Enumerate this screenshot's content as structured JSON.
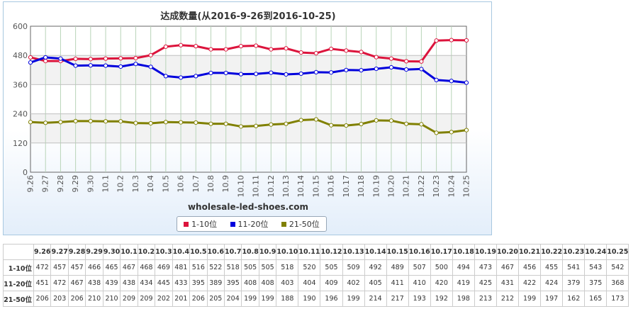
{
  "chart_data": {
    "type": "line",
    "title": "达成数量(从2016-9-26到2016-10-25)",
    "categories": [
      "9.26",
      "9.27",
      "9.28",
      "9.29",
      "9.30",
      "10.1",
      "10.2",
      "10.3",
      "10.4",
      "10.5",
      "10.6",
      "10.7",
      "10.8",
      "10.9",
      "10.10",
      "10.11",
      "10.12",
      "10.13",
      "10.14",
      "10.15",
      "10.16",
      "10.17",
      "10.18",
      "10.19",
      "10.20",
      "10.21",
      "10.22",
      "10.23",
      "10.24",
      "10.25"
    ],
    "series": [
      {
        "name": "1-10位",
        "color": "#dc143c",
        "values": [
          472,
          457,
          457,
          466,
          465,
          467,
          468,
          469,
          481,
          516,
          522,
          518,
          505,
          505,
          518,
          520,
          505,
          509,
          492,
          489,
          507,
          500,
          494,
          473,
          467,
          456,
          455,
          541,
          543,
          542
        ]
      },
      {
        "name": "11-20位",
        "color": "#0000dd",
        "values": [
          451,
          472,
          467,
          438,
          439,
          438,
          434,
          445,
          433,
          395,
          389,
          395,
          408,
          408,
          403,
          404,
          409,
          402,
          405,
          411,
          410,
          420,
          419,
          425,
          431,
          422,
          424,
          379,
          375,
          368
        ]
      },
      {
        "name": "21-50位",
        "color": "#808000",
        "values": [
          206,
          203,
          206,
          210,
          210,
          209,
          209,
          202,
          201,
          206,
          205,
          204,
          199,
          199,
          188,
          190,
          196,
          199,
          214,
          217,
          193,
          192,
          198,
          213,
          212,
          199,
          197,
          162,
          165,
          173
        ]
      }
    ],
    "ylim": [
      0,
      600
    ],
    "yticks": [
      0,
      120,
      240,
      360,
      480,
      600
    ],
    "grid": true,
    "legend_placement": "bottom-center"
  },
  "watermark": "wholesale-led-shoes.com",
  "table": {
    "columns": [
      "9.26",
      "9.27",
      "9.28",
      "9.29",
      "9.30",
      "10.1",
      "10.2",
      "10.3",
      "10.4",
      "10.5",
      "10.6",
      "10.7",
      "10.8",
      "10.9",
      "10.10",
      "10.11",
      "10.12",
      "10.13",
      "10.14",
      "10.15",
      "10.16",
      "10.17",
      "10.18",
      "10.19",
      "10.20",
      "10.21",
      "10.22",
      "10.23",
      "10.24",
      "10.25"
    ],
    "rows": [
      {
        "label": "1-10位",
        "values": [
          472,
          457,
          457,
          466,
          465,
          467,
          468,
          469,
          481,
          516,
          522,
          518,
          505,
          505,
          518,
          520,
          505,
          509,
          492,
          489,
          507,
          500,
          494,
          473,
          467,
          456,
          455,
          541,
          543,
          542
        ]
      },
      {
        "label": "11-20位",
        "values": [
          451,
          472,
          467,
          438,
          439,
          438,
          434,
          445,
          433,
          395,
          389,
          395,
          408,
          408,
          403,
          404,
          409,
          402,
          405,
          411,
          410,
          420,
          419,
          425,
          431,
          422,
          424,
          379,
          375,
          368
        ]
      },
      {
        "label": "21-50位",
        "values": [
          206,
          203,
          206,
          210,
          210,
          209,
          209,
          202,
          201,
          206,
          205,
          204,
          199,
          199,
          188,
          190,
          196,
          199,
          214,
          217,
          193,
          192,
          198,
          213,
          212,
          199,
          197,
          162,
          165,
          173
        ]
      }
    ]
  }
}
